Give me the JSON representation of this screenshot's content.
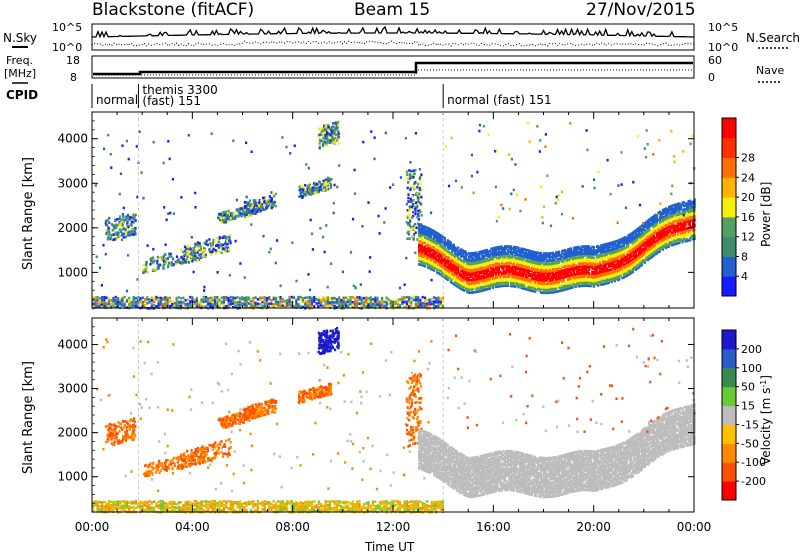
{
  "header": {
    "station": "Blackstone (fitACF)",
    "beam": "Beam 15",
    "date": "27/Nov/2015"
  },
  "panel_labels": {
    "nsky": "N.Sky",
    "nsearch": "N.Search",
    "freq": "Freq.",
    "freq_unit": "[MHz]",
    "nave": "Nave",
    "cpid": "CPID"
  },
  "nsky_axis": {
    "ticks": [
      "10^5",
      "10^0"
    ],
    "right_ticks": [
      "10^5",
      "10^0"
    ]
  },
  "freq_axis": {
    "ticks": [
      "18",
      "8"
    ],
    "right_ticks": [
      "60",
      "0"
    ]
  },
  "cpid_segments": [
    {
      "label": "normal",
      "start_hour": 0.0,
      "end_hour": 1.85
    },
    {
      "label": "themis 3300",
      "label2": "(fast) 151",
      "start_hour": 1.85,
      "end_hour": 14.0
    },
    {
      "label": "normal (fast) 151",
      "start_hour": 14.0,
      "end_hour": 24.0
    }
  ],
  "chart_data": [
    {
      "type": "heatmap",
      "panel": "power",
      "ylabel": "Slant Range [km]",
      "xlabel": "",
      "y_ticks": [
        "1000",
        "2000",
        "3000",
        "4000"
      ],
      "ylim": [
        200,
        4600
      ],
      "xlim": [
        0,
        24
      ],
      "colorbar": {
        "label": "Power [dB]",
        "ticks": [
          "4",
          "8",
          "12",
          "16",
          "20",
          "24",
          "28"
        ],
        "colors": [
          "#1a1aff",
          "#2060d0",
          "#3d8c6e",
          "#55a060",
          "#f5f000",
          "#ffb300",
          "#ff7000",
          "#ff3000",
          "#ff0000"
        ]
      }
    },
    {
      "type": "heatmap",
      "panel": "velocity",
      "ylabel": "Slant Range [km]",
      "xlabel": "Time UT",
      "x_ticks": [
        "00:00",
        "04:00",
        "08:00",
        "12:00",
        "16:00",
        "20:00",
        "00:00"
      ],
      "y_ticks": [
        "1000",
        "2000",
        "3000",
        "4000"
      ],
      "ylim": [
        200,
        4600
      ],
      "xlim": [
        0,
        24
      ],
      "colorbar": {
        "label": "Velocity [m s",
        "label_sup": "-1",
        "label_end": "]",
        "ticks": [
          "200",
          "100",
          "50",
          "15",
          "-15",
          "-50",
          "-100",
          "-200"
        ],
        "colors": [
          "#1a1acc",
          "#2c5ac8",
          "#3a8a50",
          "#66cc33",
          "#bdbdbd",
          "#ffc000",
          "#ff8a00",
          "#ff5000",
          "#ff0000"
        ]
      }
    }
  ]
}
